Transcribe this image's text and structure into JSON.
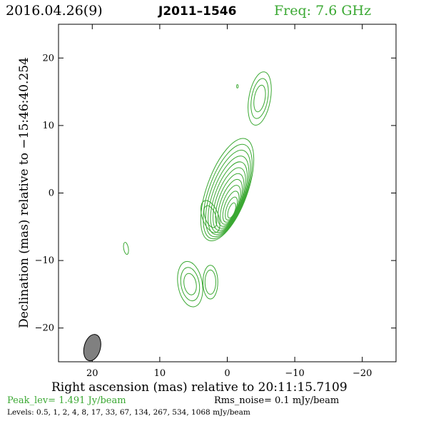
{
  "header": {
    "date": "2016.04.26(9)",
    "source": "J2011–1546",
    "frequency": "Freq: 7.6 GHz"
  },
  "chart_data": {
    "type": "contour",
    "xlabel": "Right ascension (mas) relative to 20:11:15.7109",
    "ylabel": "Declination (mas) relative to −15:46:40.254",
    "xlim": [
      25,
      -25
    ],
    "ylim": [
      -25,
      25
    ],
    "xticks": [
      20,
      10,
      0,
      -10,
      -20
    ],
    "yticks": [
      20,
      10,
      0,
      -10,
      -20
    ],
    "xtick_labels": [
      "20",
      "10",
      "0",
      "−10",
      "−20"
    ],
    "ytick_labels": [
      "20",
      "10",
      "0",
      "−10",
      "−20"
    ],
    "peak": "Peak_lev=  1.491 Jy/beam",
    "rms_noise": "Rms_noise=  0.1 mJy/beam",
    "levels_text": "Levels: 0.5,   1,   2,   4,   8,  17,  33,  67, 134, 267, 534, 1068 mJy/beam",
    "levels_mJy": [
      0.5,
      1,
      2,
      4,
      8,
      17,
      33,
      67,
      134,
      267,
      534,
      1068
    ],
    "components": [
      {
        "x": 0.0,
        "y": 0.5,
        "rings": 12
      },
      {
        "x": -4.8,
        "y": 14.0,
        "rings": 3
      },
      {
        "x": 5.5,
        "y": -13.5,
        "rings": 3
      },
      {
        "x": 2.5,
        "y": -13.2,
        "rings": 2
      },
      {
        "x": 2.5,
        "y": -3.5,
        "rings": 2
      },
      {
        "x": 15.0,
        "y": -8.2,
        "rings": 1
      },
      {
        "x": -1.5,
        "y": 15.8,
        "rings": 1
      }
    ],
    "beam": {
      "x": 20.0,
      "y": -22.9,
      "major_mas": 4.0,
      "minor_mas": 1.2,
      "pa_deg": 15
    },
    "colors": {
      "contour": "#3aa832",
      "beam_fill": "#808080",
      "frame": "#000000"
    }
  }
}
